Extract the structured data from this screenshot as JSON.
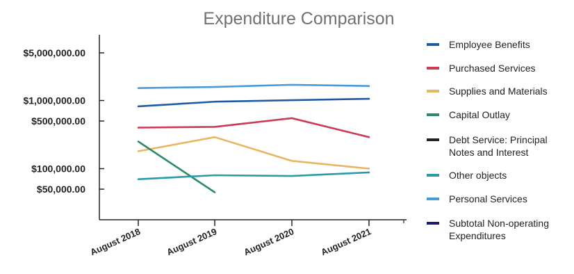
{
  "chart_data": {
    "type": "line",
    "title": "Expenditure Comparison",
    "xlabel": "",
    "ylabel": "",
    "y_scale": "log",
    "grid": false,
    "legend_position": "right",
    "categories": [
      "August 2018",
      "August 2019",
      "August 2020",
      "August 2021"
    ],
    "y_ticks": [
      {
        "value": 5000000,
        "label": "$5,000,000.00"
      },
      {
        "value": 1000000,
        "label": "$1,000,000.00"
      },
      {
        "value": 500000,
        "label": "$500,000.00"
      },
      {
        "value": 100000,
        "label": "$100,000.00"
      },
      {
        "value": 50000,
        "label": "$50,000.00"
      }
    ],
    "series": [
      {
        "name": "Employee Benefits",
        "color": "#1f5aa8",
        "values": [
          820000,
          960000,
          1010000,
          1060000
        ]
      },
      {
        "name": "Purchased Services",
        "color": "#cc3a55",
        "values": [
          400000,
          410000,
          550000,
          290000
        ]
      },
      {
        "name": "Supplies and Materials",
        "color": "#e8b560",
        "values": [
          180000,
          290000,
          130000,
          100000
        ]
      },
      {
        "name": "Capital Outlay",
        "color": "#2e8b64",
        "values": [
          250000,
          45000,
          null,
          null
        ]
      },
      {
        "name": "Debt Service: Principal Notes and Interest",
        "color": "#222222",
        "values": [
          null,
          null,
          null,
          null
        ]
      },
      {
        "name": "Other objects",
        "color": "#2a9aa6",
        "values": [
          70000,
          80000,
          78000,
          88000
        ]
      },
      {
        "name": "Personal Services",
        "color": "#4a9ad8",
        "values": [
          1520000,
          1580000,
          1700000,
          1630000
        ]
      },
      {
        "name": "Subtotal Non-operating Expenditures",
        "color": "#1c1c6a",
        "values": [
          null,
          null,
          null,
          null
        ]
      }
    ]
  }
}
